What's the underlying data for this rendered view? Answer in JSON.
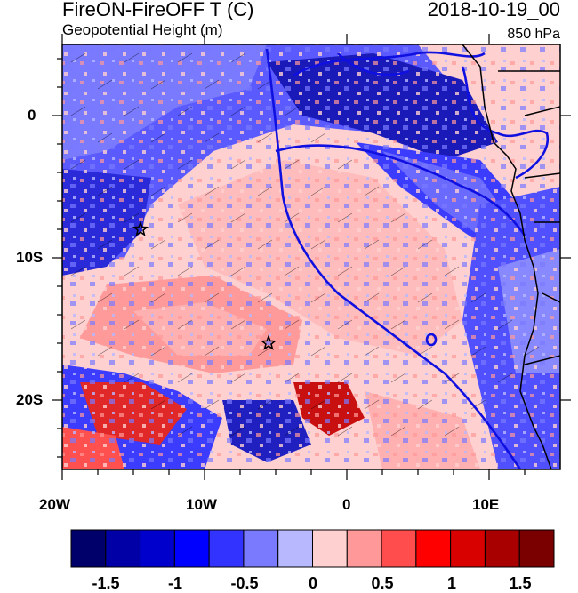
{
  "title": "FireON-FireOFF T (C)",
  "subtitle": "Geopotential Height (m)",
  "date": "2018-10-19_00",
  "level": "850 hPa",
  "lon_labels": [
    "20W",
    "10W",
    "0",
    "10E"
  ],
  "lat_labels": [
    "0",
    "10S",
    "20S"
  ],
  "stars": [
    {
      "name": "star-west",
      "lon": -14.5,
      "lat": -8
    },
    {
      "name": "star-east",
      "lon": -5.5,
      "lat": -16
    }
  ],
  "colorbar": {
    "labels": [
      "-1.5",
      "-1",
      "-0.5",
      "0",
      "0.5",
      "1",
      "1.5"
    ],
    "colors": [
      "#00006b",
      "#0000a6",
      "#0000cc",
      "#0000ff",
      "#3333ff",
      "#7a7aff",
      "#b8b8ff",
      "#ffd0d0",
      "#ff9999",
      "#ff4d4d",
      "#ff0000",
      "#d90000",
      "#a80000",
      "#7a0000"
    ]
  }
}
